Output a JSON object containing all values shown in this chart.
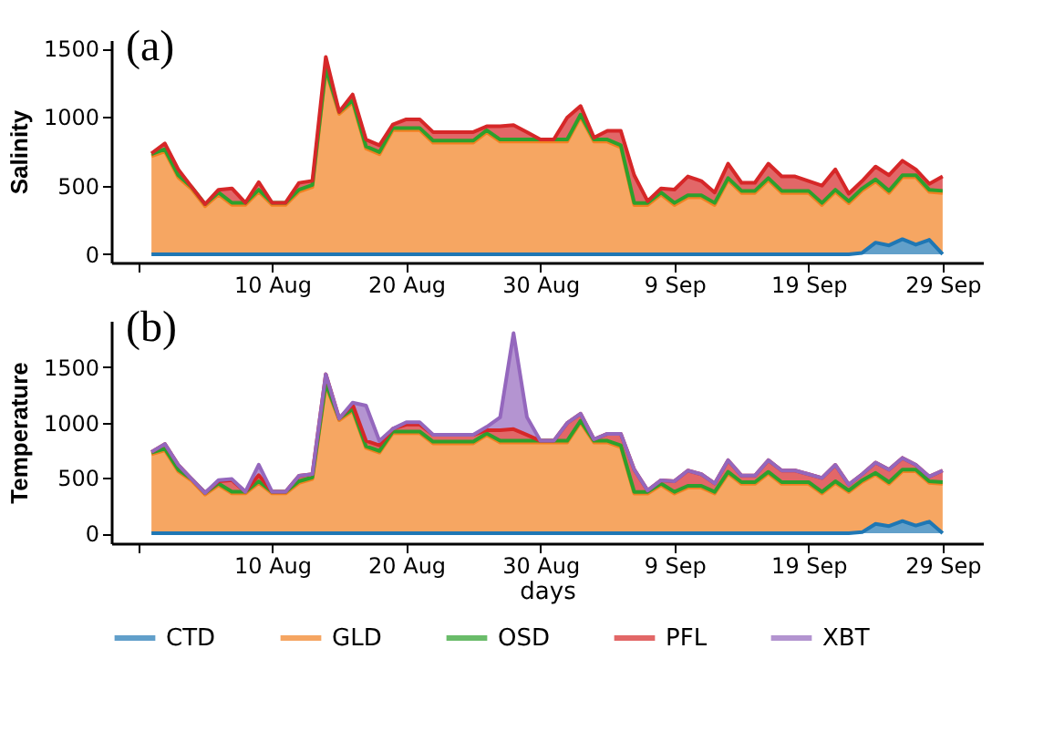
{
  "chart_data": [
    {
      "type": "area",
      "stacked": true,
      "ylabel": "Salinity",
      "annotations": [
        "(a)"
      ],
      "legend": false,
      "grid": false,
      "x": [
        "--08-01",
        "--08-02",
        "--08-03",
        "--08-04",
        "--08-05",
        "--08-06",
        "--08-07",
        "--08-08",
        "--08-09",
        "--08-10",
        "--08-11",
        "--08-12",
        "--08-13",
        "--08-14",
        "--08-15",
        "--08-16",
        "--08-17",
        "--08-18",
        "--08-19",
        "--08-20",
        "--08-21",
        "--08-22",
        "--08-23",
        "--08-24",
        "--08-25",
        "--08-26",
        "--08-27",
        "--08-28",
        "--08-29",
        "--08-30",
        "--08-31",
        "--09-01",
        "--09-02",
        "--09-03",
        "--09-04",
        "--09-05",
        "--09-06",
        "--09-07",
        "--09-08",
        "--09-09",
        "--09-10",
        "--09-11",
        "--09-12",
        "--09-13",
        "--09-14",
        "--09-15",
        "--09-16",
        "--09-17",
        "--09-18",
        "--09-19",
        "--09-20",
        "--09-21",
        "--09-22",
        "--09-23",
        "--09-24",
        "--09-25",
        "--09-26",
        "--09-27",
        "--09-28",
        "--09-29"
      ],
      "xlim": [
        "--07-29",
        "--10-02"
      ],
      "xticks": [
        {
          "value": "--07-31",
          "label": null
        },
        {
          "value": "--08-10",
          "label": "10 Aug"
        },
        {
          "value": "--08-20",
          "label": "20 Aug"
        },
        {
          "value": "--08-30",
          "label": "30 Aug"
        },
        {
          "value": "--09-09",
          "label": "9 Sep"
        },
        {
          "value": "--09-19",
          "label": "19 Sep"
        },
        {
          "value": "--09-29",
          "label": "29 Sep"
        }
      ],
      "ylim": [
        -60,
        1560
      ],
      "yticks": [
        0,
        500,
        1000,
        1500
      ],
      "series": [
        {
          "color": "#1f77b4",
          "values": [
            0,
            0,
            0,
            0,
            0,
            0,
            0,
            0,
            0,
            0,
            0,
            0,
            0,
            0,
            0,
            0,
            0,
            0,
            0,
            0,
            0,
            0,
            0,
            0,
            0,
            0,
            0,
            0,
            0,
            0,
            0,
            0,
            0,
            0,
            0,
            0,
            0,
            0,
            0,
            0,
            0,
            0,
            0,
            0,
            0,
            0,
            0,
            0,
            0,
            0,
            0,
            0,
            0,
            10,
            85,
            65,
            110,
            70,
            105,
            0
          ]
        },
        {
          "color": "#f28020",
          "values": [
            715,
            750,
            560,
            475,
            350,
            435,
            360,
            360,
            455,
            360,
            360,
            455,
            490,
            1338,
            1022,
            1107,
            771,
            729,
            905,
            905,
            905,
            813,
            813,
            813,
            813,
            888,
            821,
            821,
            821,
            821,
            821,
            821,
            1002,
            821,
            821,
            779,
            359,
            359,
            435,
            359,
            414,
            414,
            359,
            540,
            447,
            447,
            540,
            447,
            447,
            447,
            359,
            455,
            372,
            454,
            446,
            382,
            451,
            491,
            350,
            447
          ]
        },
        {
          "color": "#2ca02c",
          "values": [
            15,
            15,
            15,
            15,
            15,
            15,
            15,
            15,
            15,
            15,
            15,
            15,
            15,
            15,
            15,
            15,
            15,
            15,
            15,
            15,
            15,
            15,
            15,
            15,
            15,
            15,
            15,
            15,
            15,
            15,
            15,
            15,
            15,
            15,
            15,
            15,
            15,
            15,
            15,
            15,
            15,
            15,
            15,
            15,
            15,
            15,
            15,
            15,
            15,
            15,
            15,
            15,
            15,
            15,
            15,
            15,
            15,
            15,
            15,
            15
          ]
        },
        {
          "color": "#d62728",
          "values": [
            5,
            42,
            43,
            0,
            0,
            20,
            105,
            0,
            55,
            0,
            0,
            50,
            30,
            84,
            0,
            42,
            50,
            50,
            25,
            63,
            63,
            62,
            62,
            62,
            62,
            29,
            96,
            105,
            54,
            0,
            0,
            160,
            63,
            13,
            63,
            105,
            202,
            13,
            29,
            97,
            138,
            105,
            76,
            105,
            59,
            59,
            105,
            105,
            105,
            72,
            126,
            148,
            54,
            55,
            93,
            114,
            105,
            42,
            43,
            105
          ]
        }
      ]
    },
    {
      "type": "area",
      "stacked": true,
      "ylabel": "Temperature",
      "xlabel": "days",
      "annotations": [
        "(b)"
      ],
      "legend": "bottom",
      "grid": false,
      "x": [
        "--08-01",
        "--08-02",
        "--08-03",
        "--08-04",
        "--08-05",
        "--08-06",
        "--08-07",
        "--08-08",
        "--08-09",
        "--08-10",
        "--08-11",
        "--08-12",
        "--08-13",
        "--08-14",
        "--08-15",
        "--08-16",
        "--08-17",
        "--08-18",
        "--08-19",
        "--08-20",
        "--08-21",
        "--08-22",
        "--08-23",
        "--08-24",
        "--08-25",
        "--08-26",
        "--08-27",
        "--08-28",
        "--08-29",
        "--08-30",
        "--08-31",
        "--09-01",
        "--09-02",
        "--09-03",
        "--09-04",
        "--09-05",
        "--09-06",
        "--09-07",
        "--09-08",
        "--09-09",
        "--09-10",
        "--09-11",
        "--09-12",
        "--09-13",
        "--09-14",
        "--09-15",
        "--09-16",
        "--09-17",
        "--09-18",
        "--09-19",
        "--09-20",
        "--09-21",
        "--09-22",
        "--09-23",
        "--09-24",
        "--09-25",
        "--09-26",
        "--09-27",
        "--09-28",
        "--09-29"
      ],
      "xlim": [
        "--07-29",
        "--10-02"
      ],
      "xticks": [
        {
          "value": "--07-31",
          "label": null
        },
        {
          "value": "--08-10",
          "label": "10 Aug"
        },
        {
          "value": "--08-20",
          "label": "20 Aug"
        },
        {
          "value": "--08-30",
          "label": "30 Aug"
        },
        {
          "value": "--09-09",
          "label": "9 Sep"
        },
        {
          "value": "--09-19",
          "label": "19 Sep"
        },
        {
          "value": "--09-29",
          "label": "29 Sep"
        }
      ],
      "ylim": [
        -90,
        1920
      ],
      "yticks": [
        0,
        500,
        1000,
        1500
      ],
      "series": [
        {
          "name": "CTD",
          "color": "#1f77b4",
          "values": [
            0,
            0,
            0,
            0,
            0,
            0,
            0,
            0,
            0,
            0,
            0,
            0,
            0,
            0,
            0,
            0,
            0,
            0,
            0,
            0,
            0,
            0,
            0,
            0,
            0,
            0,
            0,
            0,
            0,
            0,
            0,
            0,
            0,
            0,
            0,
            0,
            0,
            0,
            0,
            0,
            0,
            0,
            0,
            0,
            0,
            0,
            0,
            0,
            0,
            0,
            0,
            0,
            0,
            10,
            85,
            65,
            110,
            70,
            105,
            0
          ]
        },
        {
          "name": "GLD",
          "color": "#f28020",
          "values": [
            715,
            750,
            560,
            475,
            350,
            435,
            360,
            360,
            455,
            360,
            360,
            455,
            490,
            1338,
            1022,
            1107,
            771,
            729,
            905,
            905,
            905,
            813,
            813,
            813,
            813,
            888,
            821,
            821,
            821,
            821,
            821,
            821,
            1002,
            821,
            821,
            779,
            359,
            359,
            435,
            359,
            414,
            414,
            359,
            540,
            447,
            447,
            540,
            447,
            447,
            447,
            359,
            455,
            372,
            454,
            446,
            382,
            451,
            491,
            350,
            447
          ]
        },
        {
          "name": "OSD",
          "color": "#2ca02c",
          "values": [
            15,
            15,
            15,
            15,
            15,
            15,
            15,
            15,
            15,
            15,
            15,
            15,
            15,
            15,
            15,
            15,
            15,
            15,
            15,
            15,
            15,
            15,
            15,
            15,
            15,
            15,
            15,
            15,
            15,
            15,
            15,
            15,
            15,
            15,
            15,
            15,
            15,
            15,
            15,
            15,
            15,
            15,
            15,
            15,
            15,
            15,
            15,
            15,
            15,
            15,
            15,
            15,
            15,
            15,
            15,
            15,
            15,
            15,
            15,
            15
          ]
        },
        {
          "name": "PFL",
          "color": "#d62728",
          "values": [
            5,
            42,
            43,
            0,
            0,
            20,
            105,
            0,
            55,
            0,
            0,
            50,
            30,
            84,
            0,
            42,
            50,
            50,
            25,
            63,
            63,
            62,
            62,
            62,
            62,
            29,
            96,
            105,
            54,
            0,
            0,
            160,
            63,
            13,
            63,
            105,
            202,
            13,
            29,
            97,
            138,
            105,
            76,
            105,
            59,
            59,
            105,
            105,
            105,
            72,
            126,
            148,
            54,
            55,
            93,
            114,
            105,
            42,
            43,
            105
          ]
        },
        {
          "name": "XBT",
          "color": "#9467bd",
          "values": [
            0,
            0,
            0,
            0,
            0,
            10,
            10,
            0,
            95,
            0,
            0,
            0,
            0,
            0,
            0,
            17,
            318,
            40,
            0,
            20,
            20,
            0,
            0,
            0,
            0,
            30,
            115,
            867,
            160,
            0,
            0,
            0,
            0,
            0,
            0,
            0,
            0,
            0,
            0,
            0,
            0,
            0,
            0,
            0,
            0,
            0,
            0,
            0,
            0,
            0,
            0,
            0,
            0,
            0,
            0,
            0,
            0,
            0,
            0,
            0
          ]
        }
      ]
    }
  ]
}
